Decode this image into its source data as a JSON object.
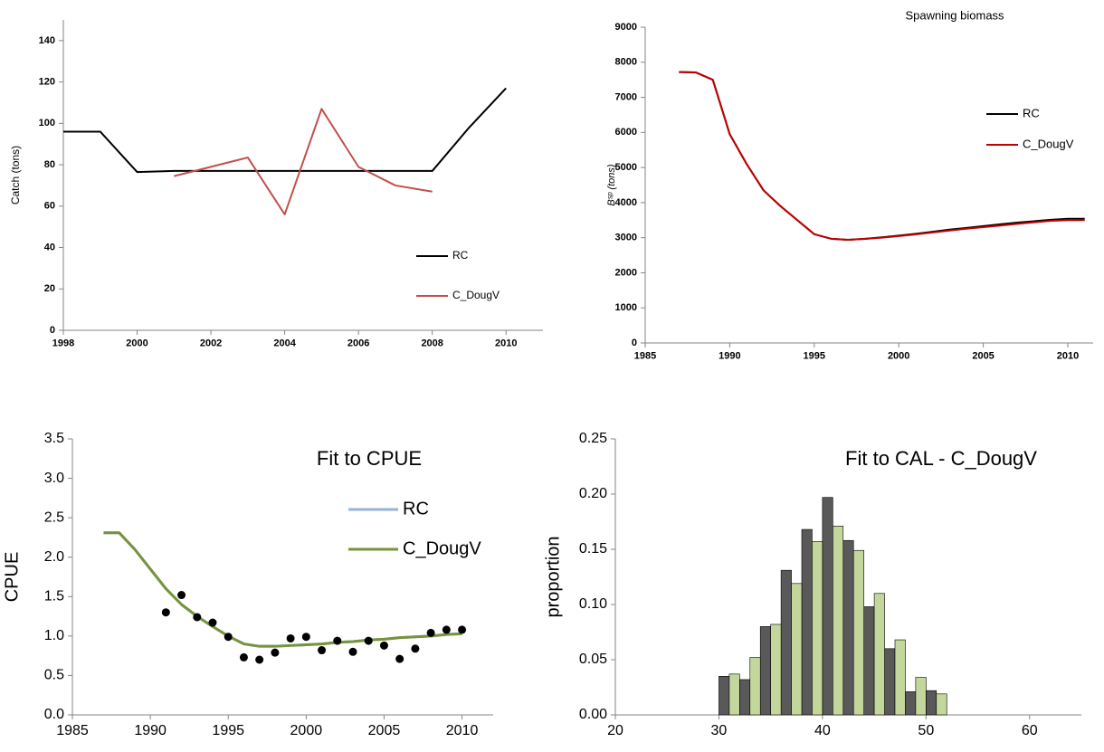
{
  "chart_data": [
    {
      "type": "line",
      "y_label": "Catch (tons)",
      "x": [
        1998,
        1999,
        2000,
        2001,
        2002,
        2003,
        2004,
        2005,
        2006,
        2007,
        2008,
        2009,
        2010
      ],
      "series": [
        {
          "name": "RC",
          "color": "#000000",
          "values": [
            96,
            96,
            76.5,
            77,
            77,
            77,
            77,
            77,
            77,
            77,
            77,
            98,
            117
          ]
        },
        {
          "name": "C_DougV",
          "color": "#c0504d",
          "values": [
            null,
            null,
            null,
            74.5,
            79,
            83.5,
            56,
            107,
            79,
            70,
            67,
            null,
            null
          ]
        }
      ],
      "xlim": [
        1998,
        2011
      ],
      "xticks": [
        1998,
        2000,
        2002,
        2004,
        2006,
        2008,
        2010
      ],
      "ylim": [
        0,
        150
      ],
      "yticks": [
        0,
        20,
        40,
        60,
        80,
        100,
        120,
        140
      ],
      "legend": "lower right"
    },
    {
      "type": "line",
      "title": "Spawning biomass",
      "y_label": "Bˢᵖ (tons)",
      "x": [
        1987,
        1988,
        1989,
        1990,
        1991,
        1992,
        1993,
        1994,
        1995,
        1996,
        1997,
        1998,
        1999,
        2000,
        2001,
        2002,
        2003,
        2004,
        2005,
        2006,
        2007,
        2008,
        2009,
        2010,
        2011
      ],
      "series": [
        {
          "name": "RC",
          "color": "#000000",
          "values": [
            7720,
            7710,
            7500,
            5950,
            5100,
            4350,
            3900,
            3500,
            3100,
            2970,
            2940,
            2970,
            3010,
            3060,
            3110,
            3170,
            3230,
            3280,
            3330,
            3380,
            3430,
            3470,
            3510,
            3540,
            3540
          ]
        },
        {
          "name": "C_DougV",
          "color": "#c00000",
          "values": [
            7720,
            7710,
            7500,
            5950,
            5100,
            4350,
            3900,
            3500,
            3100,
            2970,
            2940,
            2965,
            3000,
            3045,
            3095,
            3150,
            3205,
            3255,
            3300,
            3345,
            3395,
            3440,
            3480,
            3500,
            3500
          ]
        }
      ],
      "xlim": [
        1985,
        2011.5
      ],
      "xticks": [
        1985,
        1990,
        1995,
        2000,
        2005,
        2010
      ],
      "ylim": [
        0,
        9000
      ],
      "yticks": [
        0,
        1000,
        2000,
        3000,
        4000,
        5000,
        6000,
        7000,
        8000,
        9000
      ],
      "legend": "right"
    },
    {
      "type": "line",
      "title": "Fit to CPUE",
      "y_label": "CPUE",
      "x": [
        1987,
        1988,
        1989,
        1990,
        1991,
        1992,
        1993,
        1994,
        1995,
        1996,
        1997,
        1998,
        1999,
        2000,
        2001,
        2002,
        2003,
        2004,
        2005,
        2006,
        2007,
        2008,
        2009,
        2010
      ],
      "series": [
        {
          "name": "RC",
          "color": "#95b3d7",
          "values": [
            2.31,
            2.31,
            2.1,
            1.85,
            1.6,
            1.4,
            1.25,
            1.12,
            1.0,
            0.9,
            0.87,
            0.87,
            0.88,
            0.89,
            0.9,
            0.92,
            0.93,
            0.95,
            0.96,
            0.98,
            0.99,
            1.0,
            1.02,
            1.03
          ]
        },
        {
          "name": "C_DougV",
          "color": "#77933c",
          "values": [
            2.31,
            2.31,
            2.1,
            1.85,
            1.6,
            1.4,
            1.25,
            1.12,
            1.0,
            0.9,
            0.87,
            0.87,
            0.88,
            0.89,
            0.9,
            0.92,
            0.93,
            0.95,
            0.96,
            0.98,
            0.99,
            1.0,
            1.02,
            1.03
          ]
        }
      ],
      "points": {
        "color": "#000000",
        "x": [
          1991,
          1992,
          1993,
          1994,
          1995,
          1996,
          1997,
          1998,
          1999,
          2000,
          2001,
          2002,
          2003,
          2004,
          2005,
          2006,
          2007,
          2008,
          2009,
          2010
        ],
        "values": [
          1.3,
          1.52,
          1.24,
          1.17,
          0.99,
          0.73,
          0.7,
          0.79,
          0.97,
          0.99,
          0.82,
          0.94,
          0.8,
          0.94,
          0.88,
          0.71,
          0.84,
          1.04,
          1.08,
          1.08
        ]
      },
      "xlim": [
        1985,
        2012
      ],
      "xticks": [
        1985,
        1990,
        1995,
        2000,
        2005,
        2010
      ],
      "ylim": [
        0,
        3.5
      ],
      "yticks": [
        {
          "value": 0,
          "label": "0.0"
        },
        {
          "value": 0.5,
          "label": "0.5"
        },
        {
          "value": 1,
          "label": "1.0"
        },
        {
          "value": 1.5,
          "label": "1.5"
        },
        {
          "value": 2,
          "label": "2.0"
        },
        {
          "value": 2.5,
          "label": "2.5"
        },
        {
          "value": 3,
          "label": "3.0"
        },
        {
          "value": 3.5,
          "label": "3.5"
        }
      ],
      "legend": "upper center"
    },
    {
      "type": "bar",
      "title": "Fit to CAL  - C_DougV",
      "y_label": "proportion",
      "x": [
        30,
        32,
        34,
        36,
        38,
        40,
        42,
        44,
        46,
        48,
        50
      ],
      "series": [
        {
          "color": "#595959",
          "values": [
            0.035,
            0.032,
            0.08,
            0.131,
            0.168,
            0.197,
            0.158,
            0.098,
            0.06,
            0.021,
            0.022
          ]
        },
        {
          "color": "#c3d69b",
          "values": [
            0.037,
            0.052,
            0.082,
            0.119,
            0.157,
            0.171,
            0.149,
            0.11,
            0.068,
            0.034,
            0.019
          ]
        }
      ],
      "xlim": [
        20,
        65
      ],
      "xticks": [
        20,
        30,
        40,
        50,
        60
      ],
      "ylim": [
        0,
        0.25
      ],
      "yticks": [
        {
          "value": 0,
          "label": "0.00"
        },
        {
          "value": 0.05,
          "label": "0.05"
        },
        {
          "value": 0.1,
          "label": "0.10"
        },
        {
          "value": 0.15,
          "label": "0.15"
        },
        {
          "value": 0.2,
          "label": "0.20"
        },
        {
          "value": 0.25,
          "label": "0.25"
        }
      ]
    }
  ]
}
